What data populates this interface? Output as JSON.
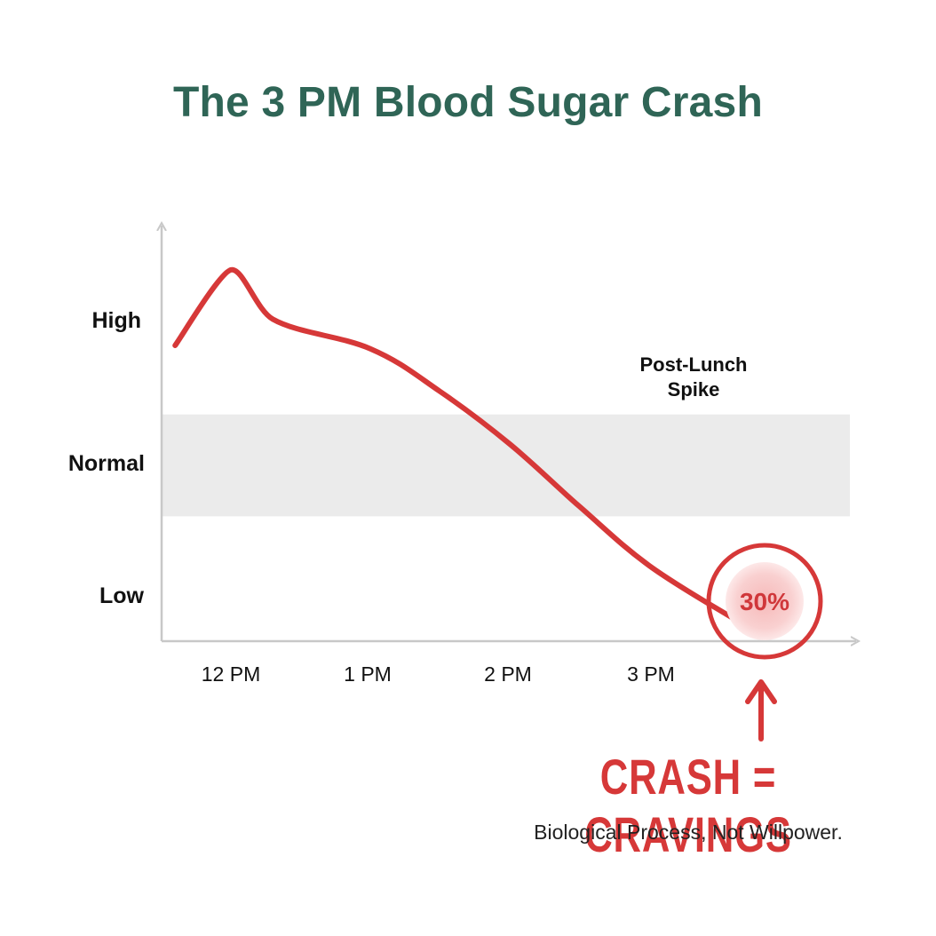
{
  "title": "The 3 PM Blood Sugar Crash",
  "chart_data": {
    "type": "line",
    "title": "The 3 PM Blood Sugar Crash",
    "xlabel": "",
    "ylabel": "",
    "x_tick_labels": [
      "12 PM",
      "1 PM",
      "2 PM",
      "3 PM"
    ],
    "y_tick_labels": [
      "High",
      "Normal",
      "Low"
    ],
    "normal_band": {
      "label": "Normal",
      "level_from": 0.38,
      "level_to": 0.69
    },
    "series": [
      {
        "color": "#d63838",
        "points": [
          {
            "x": -0.4,
            "y": 0.9
          },
          {
            "x": 0.0,
            "y": 1.13
          },
          {
            "x": 0.3,
            "y": 0.98
          },
          {
            "x": 1.0,
            "y": 0.89
          },
          {
            "x": 1.5,
            "y": 0.76
          },
          {
            "x": 2.0,
            "y": 0.6
          },
          {
            "x": 2.5,
            "y": 0.41
          },
          {
            "x": 3.0,
            "y": 0.23
          },
          {
            "x": 3.6,
            "y": 0.07
          }
        ]
      }
    ],
    "annotations": [
      {
        "text": "Post-Lunch Spike",
        "lines": [
          "Post-Lunch",
          "Spike"
        ]
      },
      {
        "text": "30%",
        "value": 30,
        "style": "circle-highlight",
        "color": "#d63838"
      }
    ],
    "grid": false,
    "accent_color": "#d63838",
    "title_color": "#2f6556"
  },
  "callout": {
    "headline": "CRASH = CRAVINGS",
    "subtext": "Biological Process, Not Willpower."
  }
}
